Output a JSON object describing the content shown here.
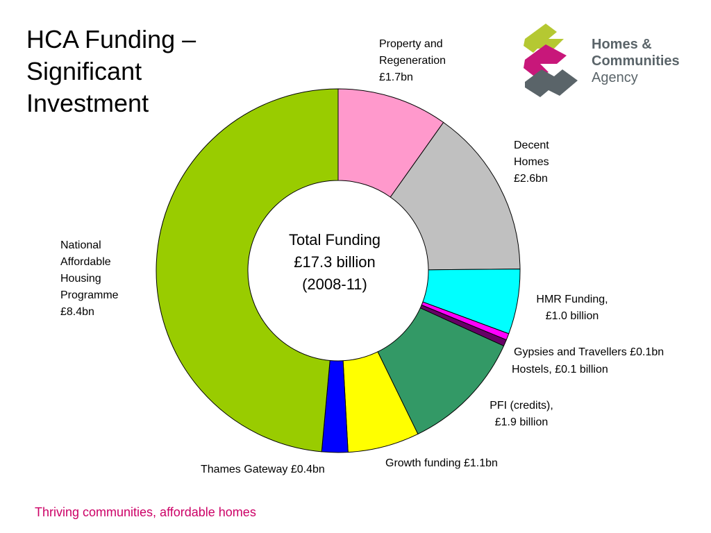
{
  "title": "HCA Funding –\nSignificant\nInvestment",
  "logo": {
    "line1": "Homes &",
    "line2": "Communities",
    "line3": "Agency",
    "colors": [
      "#b5c832",
      "#c8177a",
      "#5a6469"
    ]
  },
  "center_text": "Total Funding\n£17.3 billion\n(2008-11)",
  "footer": "Thriving communities, affordable homes",
  "chart_data": {
    "type": "pie",
    "donut": true,
    "title": "",
    "unit": "£bn",
    "slices": [
      {
        "label": "Property and\nRegeneration\n£1.7bn",
        "value": 1.7,
        "color": "#ff99cc"
      },
      {
        "label": "Decent\nHomes\n£2.6bn",
        "value": 2.6,
        "color": "#c0c0c0"
      },
      {
        "label": "HMR Funding,\n£1.0 billion",
        "value": 1.0,
        "color": "#00ffff"
      },
      {
        "label": "Gypsies and Travellers £0.1bn",
        "value": 0.1,
        "color": "#ff00ff"
      },
      {
        "label": "Hostels, £0.1 billion",
        "value": 0.1,
        "color": "#660066"
      },
      {
        "label": "PFI (credits),\n£1.9 billion",
        "value": 1.9,
        "color": "#339966"
      },
      {
        "label": "Growth funding £1.1bn",
        "value": 1.1,
        "color": "#ffff00"
      },
      {
        "label": "Thames Gateway £0.4bn",
        "value": 0.4,
        "color": "#0000ff"
      },
      {
        "label": "National\nAffordable\nHousing\nProgramme\n£8.4bn",
        "value": 8.4,
        "color": "#99cc00"
      }
    ]
  }
}
